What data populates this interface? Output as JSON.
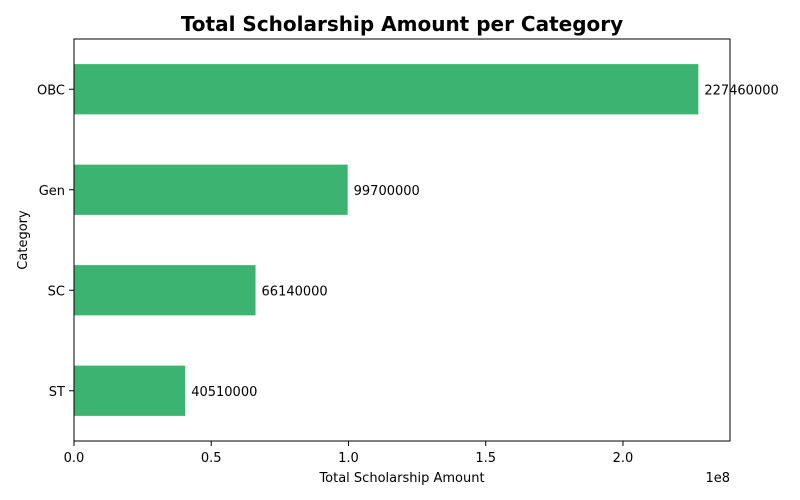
{
  "chart_data": {
    "type": "bar",
    "orientation": "horizontal",
    "title": "Total Scholarship Amount per Category",
    "xlabel": "Total Scholarship Amount",
    "ylabel": "Category",
    "x_offset_label": "1e8",
    "categories": [
      "ST",
      "SC",
      "Gen",
      "OBC"
    ],
    "values": [
      40510000,
      66140000,
      99700000,
      227460000
    ],
    "value_labels": [
      "40510000",
      "66140000",
      "99700000",
      "227460000"
    ],
    "xlim": [
      0,
      239000000
    ],
    "x_ticks": [
      0,
      50000000,
      100000000,
      150000000,
      200000000
    ],
    "x_tick_labels": [
      "0.0",
      "0.5",
      "1.0",
      "1.5",
      "2.0"
    ],
    "bar_color": "#3cb371",
    "grid": false,
    "legend": "none"
  }
}
